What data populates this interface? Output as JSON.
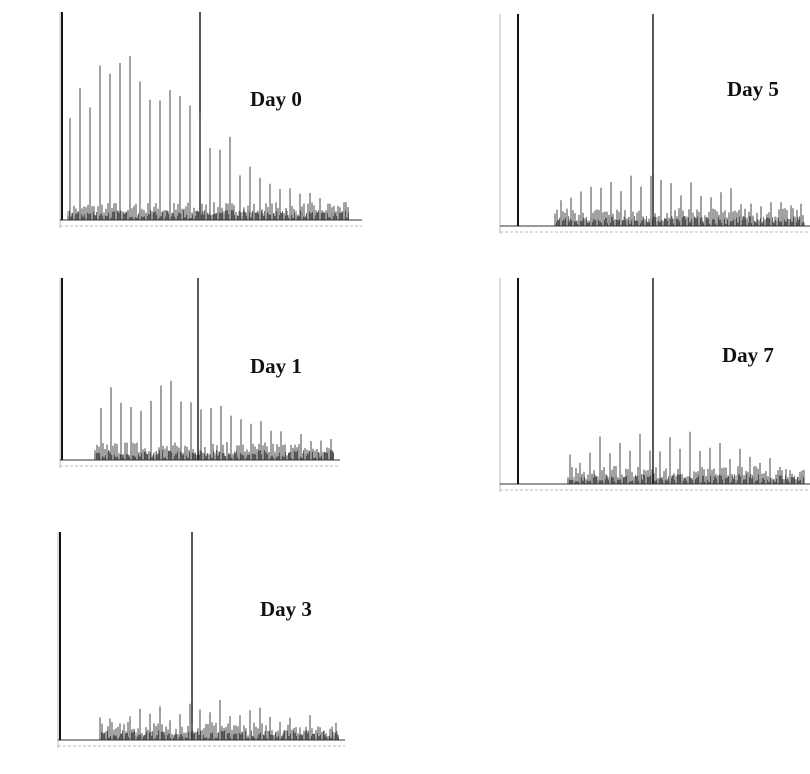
{
  "panels": [
    {
      "label": "Day 0"
    },
    {
      "label": "Day 1"
    },
    {
      "label": "Day 3"
    },
    {
      "label": "Day 5"
    },
    {
      "label": "Day 7"
    }
  ]
}
